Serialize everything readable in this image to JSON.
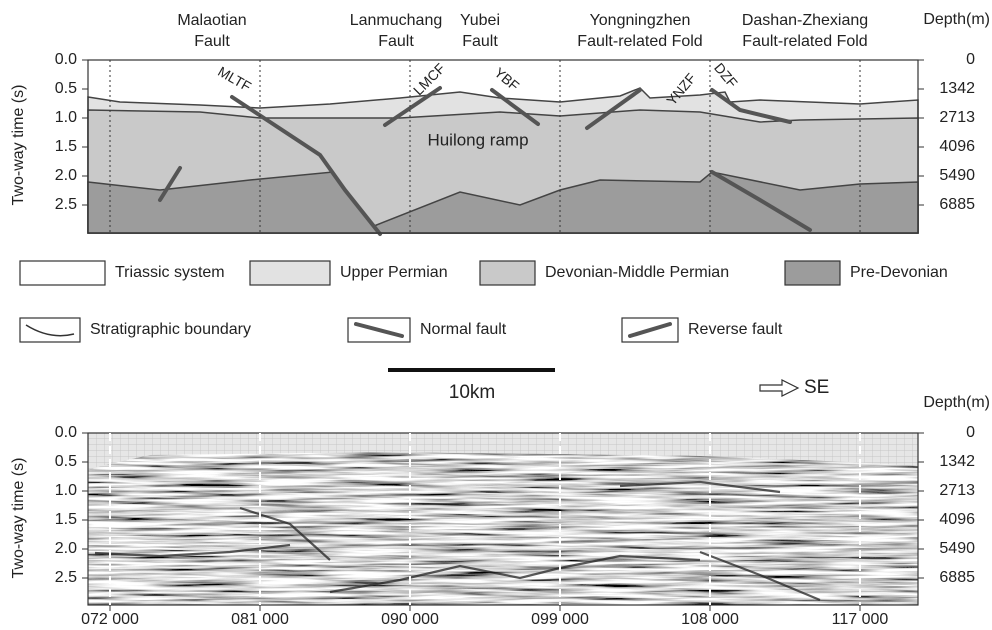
{
  "panel_top": {
    "structure_titles": [
      [
        "Malaotian",
        "Fault"
      ],
      [
        "Lanmuchang",
        "Fault"
      ],
      [
        "Yubei",
        "Fault"
      ],
      [
        "Yongningzhen",
        "Fault-related Fold"
      ],
      [
        "Dashan-Zhexiang",
        "Fault-related Fold"
      ]
    ],
    "depth_title": "Depth(m)",
    "y_axis_title": "Two-way time (s)",
    "time_ticks": [
      "0.0",
      "0.5",
      "1.0",
      "1.5",
      "2.0",
      "2.5"
    ],
    "depth_ticks": [
      "0",
      "1342",
      "2713",
      "4096",
      "5490",
      "6885"
    ],
    "fault_codes": [
      "MLTF",
      "LMCF",
      "YBF",
      "YNZF",
      "DZF"
    ],
    "annotation": "Huilong ramp"
  },
  "legend": {
    "units": [
      "Triassic system",
      "Upper Permian",
      "Devonian-Middle Permian",
      "Pre-Devonian"
    ],
    "symbols": [
      "Stratigraphic boundary",
      "Normal fault",
      "Reverse fault"
    ]
  },
  "scale_bar": "10km",
  "direction": "SE",
  "panel_bottom": {
    "depth_title": "Depth(m)",
    "y_axis_title": "Two-way time (s)",
    "time_ticks": [
      "0.0",
      "0.5",
      "1.0",
      "1.5",
      "2.0",
      "2.5"
    ],
    "depth_ticks": [
      "0",
      "1342",
      "2713",
      "4096",
      "5490",
      "6885"
    ],
    "x_ticks": [
      "072 000",
      "081 000",
      "090 000",
      "099 000",
      "108 000",
      "117 000"
    ]
  }
}
